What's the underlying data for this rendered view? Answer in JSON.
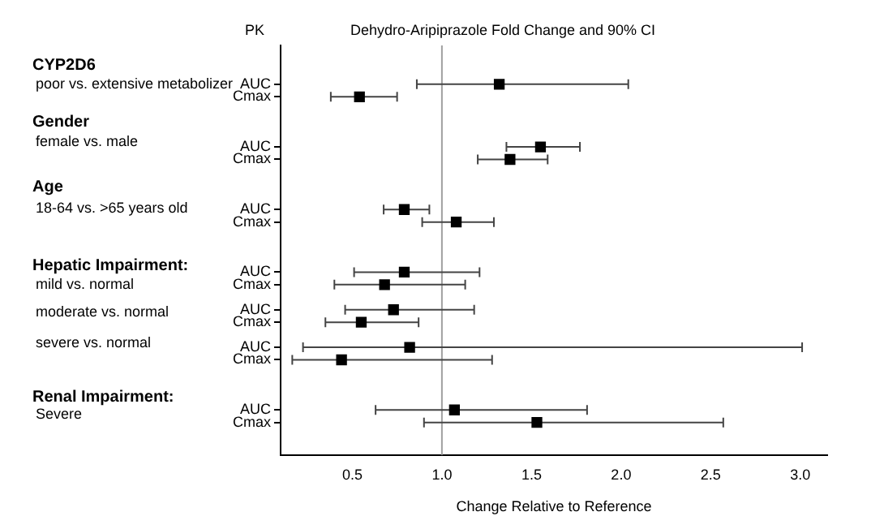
{
  "chart_data": {
    "type": "scatter",
    "orientation": "horizontal",
    "title": "Dehydro-Aripiprazole Fold Change and 90% CI",
    "ylabel": "PK",
    "xlabel": "Change Relative to Reference",
    "categories": [
      "AUC",
      "Cmax",
      null,
      null,
      null,
      "AUC",
      "Cmax",
      null,
      null,
      null,
      "AUC",
      "Cmax",
      null,
      null,
      null,
      "AUC",
      "Cmax",
      null,
      "AUC",
      "Cmax",
      null,
      "AUC",
      "Cmax",
      null,
      null,
      null,
      "AUC",
      "Cmax"
    ],
    "series": [
      {
        "color": "#000000",
        "values": [
          1.32,
          0.54,
          null,
          null,
          null,
          1.55,
          1.38,
          null,
          null,
          null,
          0.79,
          1.08,
          null,
          null,
          null,
          0.79,
          0.68,
          null,
          0.73,
          0.55,
          null,
          0.82,
          0.44,
          null,
          null,
          null,
          1.07,
          1.53
        ],
        "errors": [
          [
            0.86,
            2.04
          ],
          [
            0.38,
            0.75
          ],
          null,
          null,
          null,
          [
            1.36,
            1.77
          ],
          [
            1.2,
            1.59
          ],
          null,
          null,
          null,
          [
            0.675,
            0.93
          ],
          [
            0.89,
            1.29
          ],
          null,
          null,
          null,
          [
            0.51,
            1.21
          ],
          [
            0.4,
            1.13
          ],
          null,
          [
            0.46,
            1.18
          ],
          [
            0.35,
            0.87
          ],
          null,
          [
            0.225,
            3.01
          ],
          [
            0.165,
            1.28
          ],
          null,
          null,
          null,
          [
            0.63,
            1.81
          ],
          [
            0.9,
            2.57
          ]
        ]
      }
    ],
    "xlim": [
      0.1,
      3.15
    ],
    "xticks": [
      0.5,
      {
        "value": 1,
        "label": "1.0"
      },
      1.5,
      {
        "value": 2,
        "label": "2.0"
      },
      2.5,
      {
        "value": 3,
        "label": "3.0"
      }
    ],
    "ref_lines": [
      {
        "axis": "x",
        "value": 1,
        "color": "#a0a0a0"
      }
    ],
    "annotations": [
      "CYP2D6",
      "poor vs. extensive metabolizer",
      "Gender",
      "female vs. male",
      "Age",
      "18-64 vs. >65 years old",
      "Hepatic Impairment:",
      "mild vs. normal",
      "moderate vs. normal",
      "severe vs. normal",
      "Renal Impairment:",
      "Severe"
    ],
    "marker": "square",
    "grid": false,
    "legend": false
  }
}
